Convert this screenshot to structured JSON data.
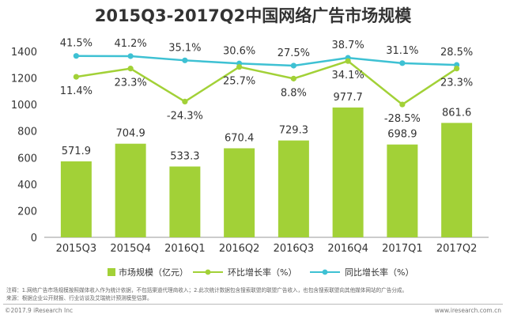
{
  "chart_data": {
    "type": "bar",
    "title": "2015Q3-2017Q2中国网络广告市场规模",
    "categories": [
      "2015Q3",
      "2015Q4",
      "2016Q1",
      "2016Q2",
      "2016Q3",
      "2016Q4",
      "2017Q1",
      "2017Q2"
    ],
    "series": [
      {
        "name": "市场规模（亿元）",
        "type": "bar",
        "values": [
          571.9,
          704.9,
          533.3,
          670.4,
          729.3,
          977.7,
          698.9,
          861.6
        ],
        "value_labels": [
          "571.9",
          "704.9",
          "533.3",
          "670.4",
          "729.3",
          "977.7",
          "698.9",
          "861.6"
        ]
      },
      {
        "name": "环比增长率（%）",
        "type": "line",
        "values": [
          11.4,
          23.3,
          -24.3,
          25.7,
          8.8,
          34.1,
          -28.5,
          23.3
        ],
        "value_labels": [
          "11.4%",
          "23.3%",
          "-24.3%",
          "25.7%",
          "8.8%",
          "34.1%",
          "-28.5%",
          "23.3%"
        ]
      },
      {
        "name": "同比增长率（%）",
        "type": "line",
        "values": [
          41.5,
          41.2,
          35.1,
          30.6,
          27.5,
          38.7,
          31.1,
          28.5
        ],
        "value_labels": [
          "41.5%",
          "41.2%",
          "35.1%",
          "30.6%",
          "27.5%",
          "38.7%",
          "31.1%",
          "28.5%"
        ]
      }
    ],
    "yticks": [
      "0",
      "200",
      "400",
      "600",
      "800",
      "1000",
      "1200",
      "1400"
    ],
    "ylim": [
      0,
      1400
    ],
    "grid": false,
    "legend_position": "bottom",
    "colors": {
      "bar": "#a2d137",
      "qoq_line": "#a2d137",
      "yoy_line": "#3ec1d3",
      "axis": "#999999",
      "text": "#333333"
    }
  },
  "notes": {
    "line1": "注释：1.网络广告市场规模按照媒体收入作为统计依据，不包括渠道代理商收入；2.此次统计数据包含搜索联盟的联盟广告收入，也包含搜索联盟向其他媒体网站的广告分成。",
    "line2": "来源：根据企业公开财报、行业访谈及艾瑞统计预测模型估算。"
  },
  "footer": {
    "left": "©2017.9 iResearch Inc",
    "right": "www.iresearch.com.cn"
  }
}
